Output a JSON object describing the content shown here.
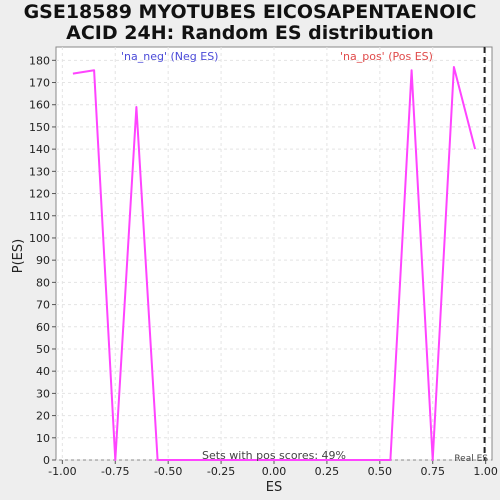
{
  "chart_data": {
    "type": "line",
    "title_line1": "GSE18589 MYOTUBES EICOSAPENTAENOIC",
    "title_line2": "ACID 24H: Random ES distribution",
    "xlabel": "ES",
    "ylabel": "P(ES)",
    "xlim": [
      -1.03,
      1.03
    ],
    "ylim": [
      0,
      186
    ],
    "x_ticks": [
      -1.0,
      -0.75,
      -0.5,
      -0.25,
      0.0,
      0.25,
      0.5,
      0.75,
      1.0
    ],
    "x_tick_labels": [
      "-1.00",
      "-0.75",
      "-0.50",
      "-0.25",
      "0.00",
      "0.25",
      "0.50",
      "0.75",
      "1.00"
    ],
    "y_ticks": [
      0,
      10,
      20,
      30,
      40,
      50,
      60,
      70,
      80,
      90,
      100,
      110,
      120,
      130,
      140,
      150,
      160,
      170,
      180
    ],
    "grid": true,
    "series": [
      {
        "color": "#ff44ff",
        "x": [
          -0.95,
          -0.85,
          -0.75,
          -0.65,
          -0.55,
          -0.45,
          -0.35,
          -0.25,
          -0.15,
          -0.05,
          0.05,
          0.15,
          0.25,
          0.35,
          0.45,
          0.55,
          0.65,
          0.75,
          0.85,
          0.95
        ],
        "y": [
          174,
          175.5,
          0,
          159,
          0,
          0,
          0,
          0,
          0,
          0,
          0,
          0,
          0,
          0,
          0,
          0,
          175.5,
          0,
          177,
          140
        ]
      }
    ],
    "annotations": {
      "neg_label": "'na_neg' (Neg ES)",
      "pos_label": "'na_pos' (Pos ES)",
      "pos_fraction_text": "Sets with pos scores: 49%",
      "real_es_label": "Real ES",
      "real_es_value": 0.995
    }
  }
}
